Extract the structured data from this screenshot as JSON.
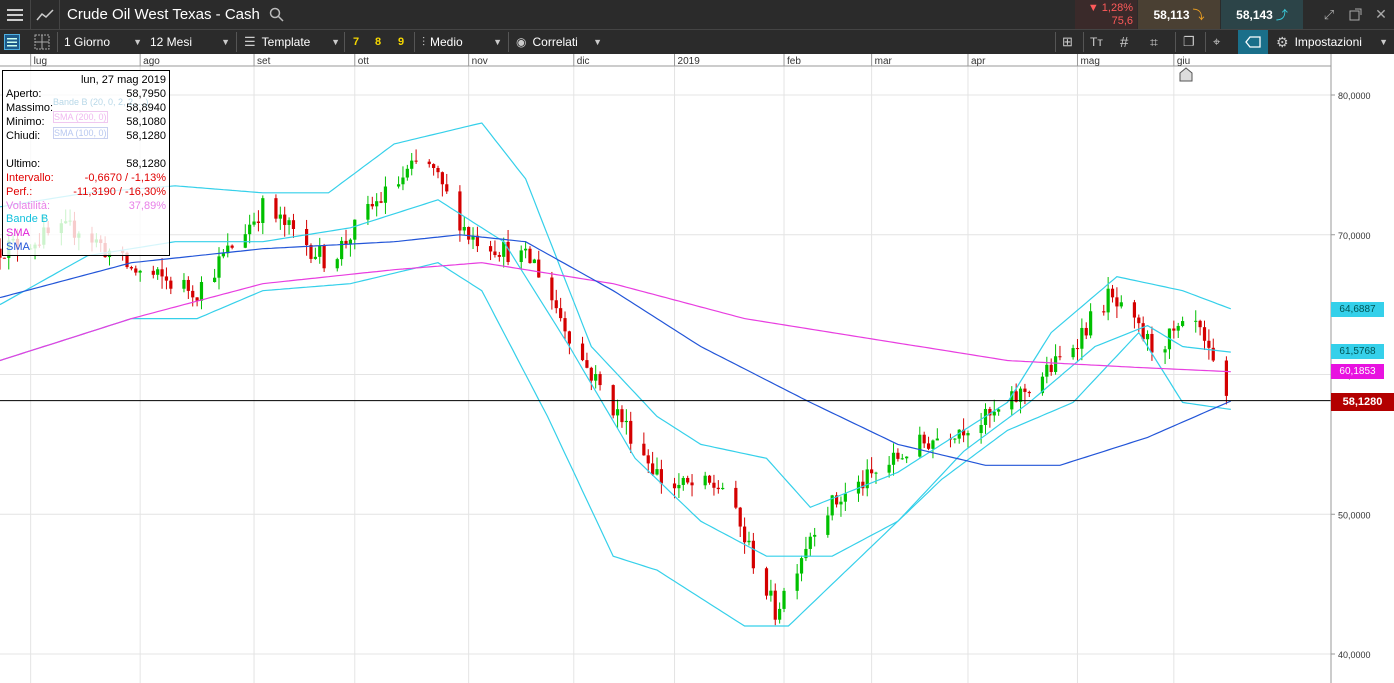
{
  "header": {
    "title": "Crude Oil West Texas - Cash",
    "change_pct": "▼ 1,28%",
    "change_val": "75,6",
    "sell_price": "58,113",
    "buy_price": "58,143"
  },
  "toolbar": {
    "interval": "1 Giorno",
    "range": "12 Mesi",
    "template": "Template",
    "preset_7": "7",
    "preset_8": "8",
    "preset_9": "9",
    "chart_style": "Medio",
    "related": "Correlati",
    "settings": "Impostazioni"
  },
  "info_panel": {
    "date": "lun, 27 mag 2019",
    "rows": [
      {
        "label": "Aperto:",
        "value": "58,7950"
      },
      {
        "label": "Massimo:",
        "value": "58,8940"
      },
      {
        "label": "Minimo:",
        "value": "58,1080"
      },
      {
        "label": "Chiudi:",
        "value": "58,1280"
      },
      {
        "label": "Ultimo:",
        "value": "58,1280"
      },
      {
        "label": "Intervallo:",
        "value": "-0,6670 / -1,13%"
      },
      {
        "label": "Perf.:",
        "value": "-11,3190 / -16,30%"
      },
      {
        "label": "Volatilità:",
        "value": "37,89%"
      }
    ],
    "legend": [
      "Bande B",
      "SMA",
      "SMA"
    ],
    "indicator_tags": [
      "Bande B (20, 0, 2, 2, ...)",
      "SMA (200, 0)",
      "SMA (100, 0)"
    ]
  },
  "colors": {
    "up": "#00c000",
    "down": "#d40000",
    "bollinger": "#35d0ea",
    "sma200": "#e83ee0",
    "sma100": "#2255d8",
    "last_price": "#b30000"
  },
  "chart_data": {
    "type": "candlestick",
    "months": [
      "lug",
      "ago",
      "set",
      "ott",
      "nov",
      "dic",
      "2019",
      "feb",
      "mar",
      "apr",
      "mag",
      "giu"
    ],
    "y_ticks": [
      "80,0000",
      "70,0000",
      "60,0000",
      "50,0000",
      "40,0000"
    ],
    "ylim": [
      38,
      82
    ],
    "last_price": 58.128,
    "right_labels": [
      {
        "name": "bollinger-upper-label",
        "value": "64,6887"
      },
      {
        "name": "bollinger-mid-label",
        "value": "61,5768"
      },
      {
        "name": "sma200-label",
        "value": "60,1853"
      },
      {
        "name": "last-price-label",
        "value": "58,1280"
      }
    ],
    "close_anchors": [
      [
        0,
        69
      ],
      [
        18,
        70.5
      ],
      [
        30,
        67.5
      ],
      [
        45,
        66
      ],
      [
        60,
        72
      ],
      [
        75,
        68
      ],
      [
        85,
        72
      ],
      [
        97,
        75.5
      ],
      [
        107,
        70
      ],
      [
        122,
        68
      ],
      [
        133,
        61
      ],
      [
        152,
        52
      ],
      [
        165,
        52
      ],
      [
        177,
        43
      ],
      [
        187,
        50
      ],
      [
        207,
        54.5
      ],
      [
        217,
        56
      ],
      [
        227,
        57
      ],
      [
        242,
        61
      ],
      [
        253,
        65.5
      ],
      [
        263,
        62
      ],
      [
        273,
        63.5
      ],
      [
        280,
        58.1
      ]
    ],
    "bollinger_upper": [
      [
        0,
        72
      ],
      [
        20,
        73
      ],
      [
        40,
        73.5
      ],
      [
        60,
        73
      ],
      [
        75,
        73
      ],
      [
        90,
        76.5
      ],
      [
        110,
        78
      ],
      [
        120,
        74
      ],
      [
        135,
        62
      ],
      [
        150,
        57
      ],
      [
        160,
        55
      ],
      [
        175,
        54
      ],
      [
        185,
        50.5
      ],
      [
        205,
        53
      ],
      [
        215,
        55
      ],
      [
        230,
        58
      ],
      [
        240,
        63
      ],
      [
        255,
        67
      ],
      [
        270,
        66
      ],
      [
        281,
        64.7
      ]
    ],
    "bollinger_mid": [
      [
        0,
        65
      ],
      [
        20,
        68.5
      ],
      [
        40,
        69.5
      ],
      [
        60,
        69.5
      ],
      [
        80,
        70.5
      ],
      [
        100,
        72.5
      ],
      [
        115,
        69.5
      ],
      [
        130,
        62
      ],
      [
        145,
        54
      ],
      [
        160,
        49.5
      ],
      [
        175,
        47
      ],
      [
        190,
        47
      ],
      [
        205,
        49.5
      ],
      [
        220,
        54.5
      ],
      [
        235,
        58
      ],
      [
        250,
        62
      ],
      [
        262,
        63.5
      ],
      [
        270,
        62
      ],
      [
        281,
        61.6
      ]
    ],
    "bollinger_lower": [
      [
        0,
        61
      ],
      [
        15,
        62.5
      ],
      [
        30,
        64
      ],
      [
        45,
        64
      ],
      [
        60,
        66
      ],
      [
        80,
        66.5
      ],
      [
        100,
        68
      ],
      [
        110,
        66
      ],
      [
        125,
        57
      ],
      [
        140,
        47
      ],
      [
        150,
        46
      ],
      [
        160,
        44
      ],
      [
        170,
        42
      ],
      [
        180,
        42
      ],
      [
        190,
        45
      ],
      [
        200,
        48
      ],
      [
        215,
        52.5
      ],
      [
        230,
        56
      ],
      [
        245,
        58
      ],
      [
        260,
        63
      ],
      [
        270,
        58
      ],
      [
        281,
        57.5
      ]
    ],
    "sma200": [
      [
        0,
        61
      ],
      [
        30,
        64
      ],
      [
        60,
        66.5
      ],
      [
        90,
        67.5
      ],
      [
        110,
        68
      ],
      [
        140,
        66.5
      ],
      [
        170,
        64
      ],
      [
        200,
        62.5
      ],
      [
        230,
        61
      ],
      [
        260,
        60.5
      ],
      [
        281,
        60.2
      ]
    ],
    "sma100": [
      [
        0,
        65.5
      ],
      [
        30,
        68
      ],
      [
        60,
        69
      ],
      [
        90,
        69.5
      ],
      [
        105,
        70
      ],
      [
        120,
        69.5
      ],
      [
        140,
        66
      ],
      [
        160,
        62
      ],
      [
        185,
        58
      ],
      [
        205,
        55
      ],
      [
        225,
        53.5
      ],
      [
        242,
        53.5
      ],
      [
        262,
        55.5
      ],
      [
        281,
        58.1
      ]
    ]
  }
}
